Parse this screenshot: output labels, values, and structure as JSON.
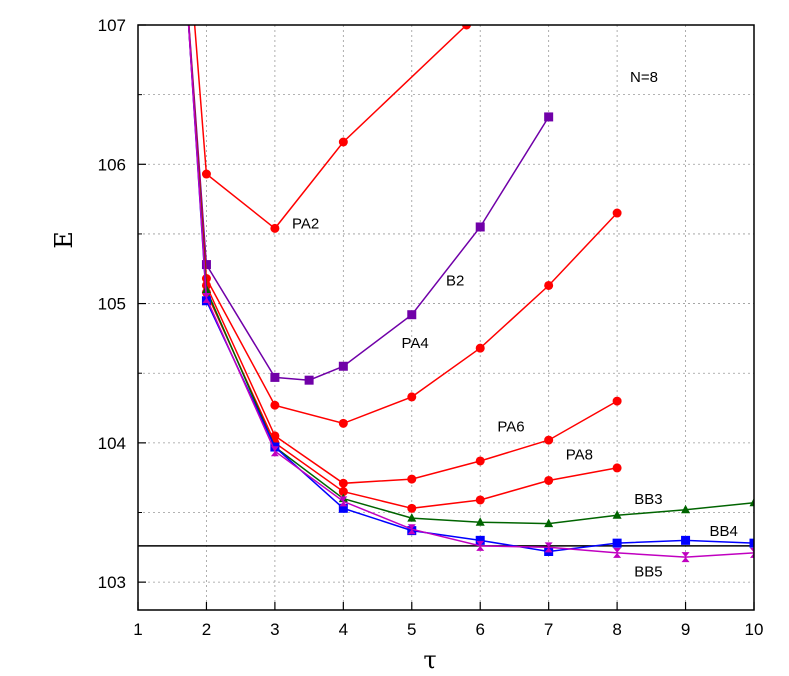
{
  "chart_data": {
    "type": "line",
    "title": "",
    "xlabel": "τ",
    "ylabel": "E",
    "xlim": [
      1,
      10
    ],
    "ylim": [
      102.8,
      107
    ],
    "x_ticks": [
      1,
      2,
      3,
      4,
      5,
      6,
      7,
      8,
      9,
      10
    ],
    "y_ticks": [
      103,
      104,
      105,
      106,
      107
    ],
    "grid": true,
    "annotation": "N=8",
    "reference_line": 103.26,
    "series": [
      {
        "name": "PA2",
        "color": "#ff0000",
        "marker": "circle",
        "x": [
          1.7,
          2,
          3,
          4,
          5.8
        ],
        "y": [
          107.8,
          105.93,
          105.54,
          106.16,
          107.0
        ]
      },
      {
        "name": "B2",
        "color": "#7000a8",
        "marker": "square",
        "x": [
          1.7,
          2,
          3,
          3.5,
          4,
          5,
          6,
          7
        ],
        "y": [
          107.3,
          105.28,
          104.47,
          104.45,
          104.55,
          104.92,
          105.55,
          106.34
        ]
      },
      {
        "name": "PA4",
        "color": "#ff0000",
        "marker": "circle",
        "x": [
          1.7,
          2,
          3,
          4,
          5,
          6,
          7,
          8
        ],
        "y": [
          107.3,
          105.18,
          104.27,
          104.14,
          104.33,
          104.68,
          105.13,
          105.65
        ]
      },
      {
        "name": "PA6",
        "color": "#ff0000",
        "marker": "circle",
        "x": [
          1.7,
          2,
          3,
          4,
          5,
          6,
          7,
          8
        ],
        "y": [
          107.3,
          105.13,
          104.05,
          103.71,
          103.74,
          103.87,
          104.02,
          104.3
        ]
      },
      {
        "name": "PA8",
        "color": "#ff0000",
        "marker": "circle",
        "x": [
          1.7,
          2,
          3,
          4,
          5,
          6,
          7,
          8
        ],
        "y": [
          107.3,
          105.08,
          104.0,
          103.65,
          103.53,
          103.59,
          103.73,
          103.82
        ]
      },
      {
        "name": "BB3",
        "color": "#006400",
        "marker": "triangle",
        "x": [
          1.7,
          2,
          3,
          4,
          5,
          6,
          7,
          8,
          9,
          10
        ],
        "y": [
          107.3,
          105.1,
          103.97,
          103.6,
          103.46,
          103.43,
          103.42,
          103.48,
          103.52,
          103.57
        ]
      },
      {
        "name": "BB4",
        "color": "#0000ff",
        "marker": "square",
        "x": [
          1.7,
          2,
          3,
          4,
          5,
          6,
          7,
          8,
          9,
          10
        ],
        "y": [
          107.3,
          105.02,
          103.97,
          103.53,
          103.37,
          103.3,
          103.22,
          103.28,
          103.3,
          103.28
        ]
      },
      {
        "name": "BB5",
        "color": "#c000c0",
        "marker": "hourglass",
        "x": [
          1.7,
          2,
          3,
          4,
          5,
          6,
          7,
          8,
          9,
          10
        ],
        "y": [
          107.3,
          105.04,
          103.94,
          103.58,
          103.38,
          103.26,
          103.25,
          103.21,
          103.18,
          103.21
        ]
      }
    ],
    "series_labels": [
      {
        "text": "PA2",
        "x": 3.25,
        "y": 105.54
      },
      {
        "text": "B2",
        "x": 5.5,
        "y": 105.13
      },
      {
        "text": "PA4",
        "x": 4.85,
        "y": 104.68
      },
      {
        "text": "PA6",
        "x": 6.25,
        "y": 104.08
      },
      {
        "text": "PA8",
        "x": 7.25,
        "y": 103.88
      },
      {
        "text": "BB3",
        "x": 8.25,
        "y": 103.56
      },
      {
        "text": "BB4",
        "x": 9.35,
        "y": 103.33
      },
      {
        "text": "BB5",
        "x": 8.25,
        "y": 103.04
      }
    ]
  }
}
